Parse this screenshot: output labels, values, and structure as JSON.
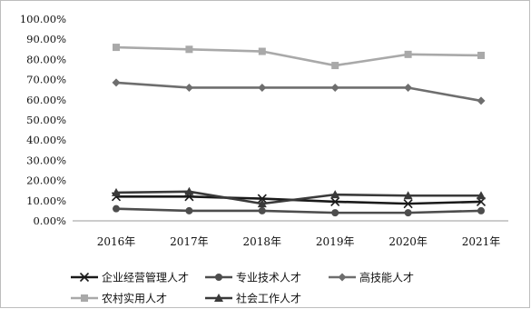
{
  "chart_data": {
    "type": "line",
    "categories": [
      "2016年",
      "2017年",
      "2018年",
      "2019年",
      "2020年",
      "2021年"
    ],
    "ylim": [
      0,
      100
    ],
    "y_ticks": [
      "0.00%",
      "10.00%",
      "20.00%",
      "30.00%",
      "40.00%",
      "50.00%",
      "60.00%",
      "70.00%",
      "80.00%",
      "90.00%",
      "100.00%"
    ],
    "grid": false,
    "legend_position": "bottom",
    "series": [
      {
        "name": "企业经营管理人才",
        "values": [
          12,
          12,
          11,
          9.5,
          8.5,
          9.5
        ],
        "color": "#1a1a1a",
        "marker": "x"
      },
      {
        "name": "专业技术人才",
        "values": [
          6,
          5,
          5,
          4,
          4,
          5
        ],
        "color": "#4d4d4d",
        "marker": "circle"
      },
      {
        "name": "高技能人才",
        "values": [
          68.5,
          66,
          66,
          66,
          66,
          59.5
        ],
        "color": "#6e6e6e",
        "marker": "diamond"
      },
      {
        "name": "农村实用人才",
        "values": [
          86,
          85,
          84,
          77,
          82.5,
          82
        ],
        "color": "#a9a9a9",
        "marker": "square"
      },
      {
        "name": "社会工作人才",
        "values": [
          14,
          14.5,
          8.5,
          13,
          12.5,
          12.5
        ],
        "color": "#3a3a3a",
        "marker": "triangle"
      }
    ]
  }
}
